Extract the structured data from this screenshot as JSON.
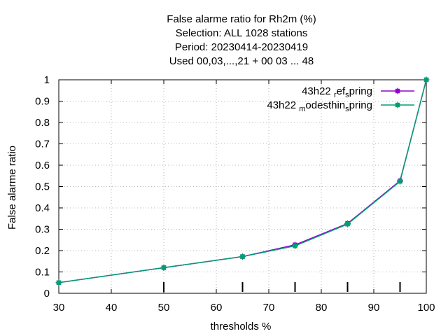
{
  "chart_data": {
    "type": "line",
    "title_lines": [
      "False alarme ratio  for Rh2m (%)",
      "Selection: ALL   1028 stations",
      "Period: 20230414-20230419",
      "Used  00,03,...,21  + 00 03 ... 48"
    ],
    "xlabel": "thresholds %",
    "ylabel": "False alarme ratio",
    "xlim": [
      30,
      100
    ],
    "ylim": [
      0,
      1
    ],
    "x_ticks": [
      "30",
      "40",
      "50",
      "60",
      "70",
      "80",
      "90",
      "100"
    ],
    "y_ticks": [
      "0",
      "0.1",
      "0.2",
      "0.3",
      "0.4",
      "0.5",
      "0.6",
      "0.7",
      "0.8",
      "0.9",
      "1"
    ],
    "grid": true,
    "legend_position": "top-right",
    "x": [
      30,
      50,
      65,
      75,
      85,
      95,
      100
    ],
    "series": [
      {
        "name_parts": [
          "43h22 ",
          "r",
          "ef",
          "s",
          "pring"
        ],
        "color": "#9400d3",
        "values": [
          0.05,
          0.12,
          0.172,
          0.227,
          0.327,
          0.527,
          1.0
        ]
      },
      {
        "name_parts": [
          "43h22 ",
          "m",
          "odesthin",
          "s",
          "pring"
        ],
        "color": "#009e73",
        "values": [
          0.05,
          0.12,
          0.172,
          0.222,
          0.324,
          0.524,
          1.0
        ]
      }
    ],
    "threshold_marks": [
      50,
      65,
      75,
      85,
      95
    ]
  }
}
